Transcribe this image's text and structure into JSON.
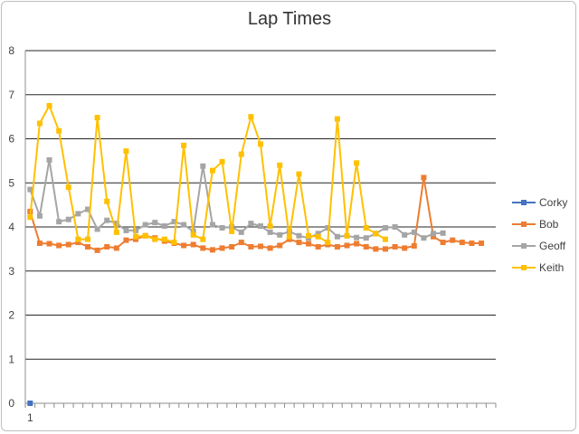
{
  "chart_data": {
    "type": "line",
    "title": "Lap Times",
    "xlabel": "",
    "ylabel": "",
    "ylim": [
      0,
      8
    ],
    "yticks": [
      0,
      1,
      2,
      3,
      4,
      5,
      6,
      7,
      8
    ],
    "x_tick_labels": [
      "1"
    ],
    "grid": true,
    "legend_position": "right",
    "series": [
      {
        "name": "Corky",
        "color": "#4472c4",
        "values": [
          0
        ]
      },
      {
        "name": "Bob",
        "color": "#ed7d31",
        "values": [
          4.35,
          3.63,
          3.62,
          3.58,
          3.6,
          3.65,
          3.55,
          3.47,
          3.55,
          3.52,
          3.7,
          3.72,
          3.8,
          3.75,
          3.68,
          3.63,
          3.58,
          3.6,
          3.52,
          3.48,
          3.52,
          3.55,
          3.65,
          3.55,
          3.56,
          3.52,
          3.58,
          3.72,
          3.65,
          3.62,
          3.55,
          3.6,
          3.55,
          3.58,
          3.62,
          3.55,
          3.5,
          3.5,
          3.55,
          3.52,
          3.57,
          5.12,
          3.78,
          3.65,
          3.7,
          3.65,
          3.63,
          3.63
        ]
      },
      {
        "name": "Geoff",
        "color": "#a5a5a5",
        "values": [
          4.85,
          4.25,
          5.52,
          4.12,
          4.17,
          4.3,
          4.4,
          3.95,
          4.15,
          4.08,
          3.92,
          3.92,
          4.05,
          4.1,
          4.02,
          4.12,
          4.05,
          3.9,
          5.38,
          4.05,
          3.98,
          4.0,
          3.88,
          4.08,
          4.02,
          3.88,
          3.82,
          3.9,
          3.8,
          3.75,
          3.85,
          3.98,
          3.78,
          3.8,
          3.76,
          3.75,
          3.85,
          3.98,
          4.0,
          3.82,
          3.88,
          3.75,
          3.85,
          3.86
        ]
      },
      {
        "name": "Keith",
        "color": "#ffc000",
        "values": [
          4.22,
          6.35,
          6.75,
          6.18,
          4.9,
          3.72,
          3.72,
          6.48,
          4.58,
          3.88,
          5.72,
          3.78,
          3.8,
          3.72,
          3.72,
          3.65,
          5.85,
          3.82,
          3.72,
          5.28,
          5.48,
          3.9,
          5.65,
          6.5,
          5.88,
          4.02,
          5.4,
          3.78,
          5.2,
          3.8,
          3.78,
          3.65,
          6.45,
          3.8,
          5.45,
          3.98,
          3.85,
          3.72
        ]
      }
    ]
  }
}
